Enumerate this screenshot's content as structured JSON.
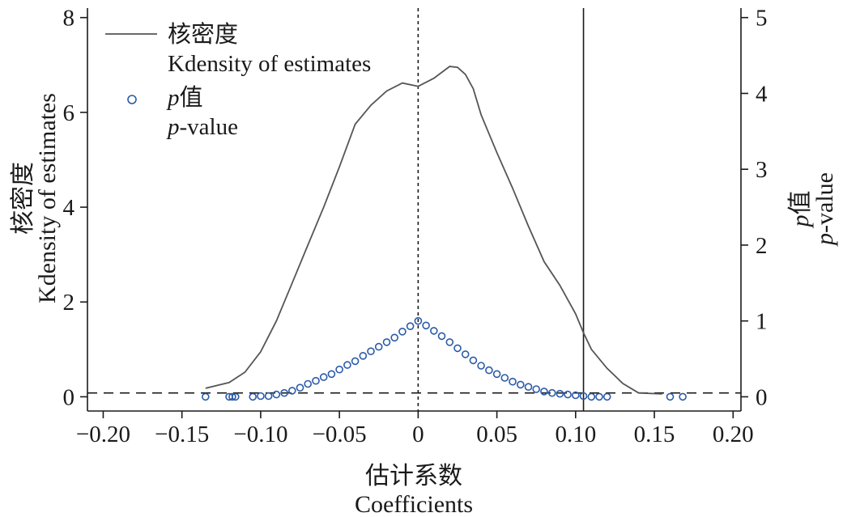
{
  "chart_data": {
    "type": "line",
    "xlabel": [
      "估计系数",
      "Coefficients"
    ],
    "ylabel_left": [
      "核密度",
      "Kdensity of estimates"
    ],
    "ylabel_right": [
      "p值",
      "p-value"
    ],
    "xlim": [
      -0.21,
      0.205
    ],
    "ylim_left": [
      -0.3,
      8.2
    ],
    "ylim_right": [
      -0.1875,
      5.125
    ],
    "xticks": [
      -0.2,
      -0.15,
      -0.1,
      -0.05,
      0,
      0.05,
      0.1,
      0.15,
      0.2
    ],
    "xtick_labels": [
      "−0.20",
      "−0.15",
      "−0.10",
      "−0.05",
      "0",
      "0.05",
      "0.10",
      "0.15",
      "0.20"
    ],
    "yticks_left": [
      0,
      2,
      4,
      6,
      8
    ],
    "yticks_right": [
      0,
      1,
      2,
      3,
      4,
      5
    ],
    "legend": {
      "placement": "top-left",
      "entries": [
        {
          "label": "核密度",
          "sublabel": "Kdensity of estimates",
          "marker": "line"
        },
        {
          "label_italic": "p",
          "label": "值",
          "sublabel_italic": "p",
          "sublabel": "-value",
          "marker": "circle"
        }
      ]
    },
    "reference_lines": {
      "vertical_dashed_x": 0,
      "vertical_solid_x": 0.105,
      "horizontal_dashed_p": 0.05
    },
    "series": [
      {
        "name": "核密度 Kdensity of estimates",
        "axis": "left",
        "kind": "line",
        "points": [
          [
            -0.135,
            0.18
          ],
          [
            -0.12,
            0.3
          ],
          [
            -0.11,
            0.52
          ],
          [
            -0.1,
            0.95
          ],
          [
            -0.09,
            1.6
          ],
          [
            -0.08,
            2.4
          ],
          [
            -0.07,
            3.2
          ],
          [
            -0.06,
            4.0
          ],
          [
            -0.05,
            4.85
          ],
          [
            -0.04,
            5.75
          ],
          [
            -0.03,
            6.15
          ],
          [
            -0.02,
            6.45
          ],
          [
            -0.01,
            6.62
          ],
          [
            0.0,
            6.55
          ],
          [
            0.01,
            6.72
          ],
          [
            0.02,
            6.97
          ],
          [
            0.025,
            6.95
          ],
          [
            0.03,
            6.8
          ],
          [
            0.035,
            6.5
          ],
          [
            0.04,
            5.95
          ],
          [
            0.05,
            5.15
          ],
          [
            0.06,
            4.4
          ],
          [
            0.07,
            3.6
          ],
          [
            0.08,
            2.85
          ],
          [
            0.09,
            2.35
          ],
          [
            0.1,
            1.75
          ],
          [
            0.105,
            1.35
          ],
          [
            0.11,
            1.0
          ],
          [
            0.12,
            0.6
          ],
          [
            0.13,
            0.28
          ],
          [
            0.14,
            0.08
          ],
          [
            0.155,
            0.06
          ]
        ]
      },
      {
        "name": "p值 p-value",
        "axis": "right",
        "kind": "scatter",
        "points": [
          [
            -0.135,
            0.0
          ],
          [
            -0.12,
            0.0
          ],
          [
            -0.118,
            0.0
          ],
          [
            -0.116,
            0.0
          ],
          [
            -0.105,
            0.0
          ],
          [
            -0.1,
            0.01
          ],
          [
            -0.095,
            0.01
          ],
          [
            -0.09,
            0.03
          ],
          [
            -0.085,
            0.05
          ],
          [
            -0.08,
            0.08
          ],
          [
            -0.075,
            0.12
          ],
          [
            -0.07,
            0.17
          ],
          [
            -0.065,
            0.21
          ],
          [
            -0.06,
            0.26
          ],
          [
            -0.055,
            0.3
          ],
          [
            -0.05,
            0.36
          ],
          [
            -0.045,
            0.42
          ],
          [
            -0.04,
            0.47
          ],
          [
            -0.035,
            0.54
          ],
          [
            -0.03,
            0.6
          ],
          [
            -0.025,
            0.66
          ],
          [
            -0.02,
            0.72
          ],
          [
            -0.015,
            0.78
          ],
          [
            -0.01,
            0.86
          ],
          [
            -0.005,
            0.93
          ],
          [
            0.0,
            1.0
          ],
          [
            0.005,
            0.94
          ],
          [
            0.01,
            0.87
          ],
          [
            0.015,
            0.8
          ],
          [
            0.02,
            0.72
          ],
          [
            0.025,
            0.64
          ],
          [
            0.03,
            0.56
          ],
          [
            0.035,
            0.48
          ],
          [
            0.04,
            0.41
          ],
          [
            0.045,
            0.35
          ],
          [
            0.05,
            0.3
          ],
          [
            0.055,
            0.25
          ],
          [
            0.06,
            0.2
          ],
          [
            0.065,
            0.16
          ],
          [
            0.07,
            0.13
          ],
          [
            0.075,
            0.1
          ],
          [
            0.08,
            0.07
          ],
          [
            0.085,
            0.05
          ],
          [
            0.09,
            0.04
          ],
          [
            0.095,
            0.03
          ],
          [
            0.1,
            0.02
          ],
          [
            0.105,
            0.01
          ],
          [
            0.11,
            0.0
          ],
          [
            0.115,
            0.0
          ],
          [
            0.12,
            0.0
          ],
          [
            0.16,
            0.0
          ],
          [
            0.168,
            0.0
          ]
        ]
      }
    ]
  }
}
